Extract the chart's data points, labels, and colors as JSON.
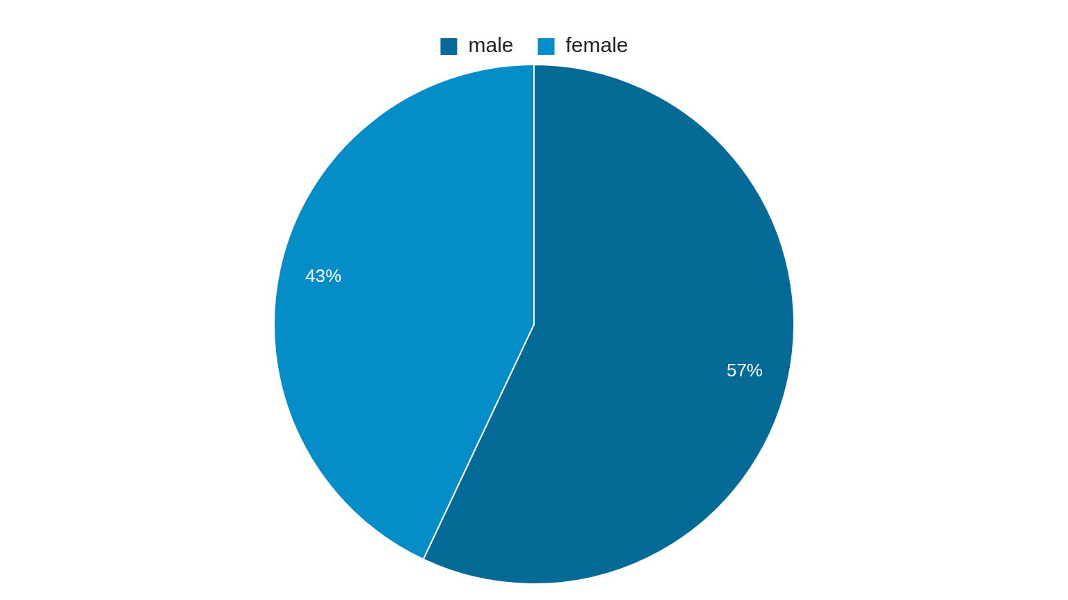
{
  "chart_data": {
    "type": "pie",
    "categories": [
      "male",
      "female"
    ],
    "values": [
      57,
      43
    ],
    "colors": [
      "#066a96",
      "#058dc7"
    ],
    "value_labels": [
      "57%",
      "43%"
    ],
    "legend": "top"
  }
}
